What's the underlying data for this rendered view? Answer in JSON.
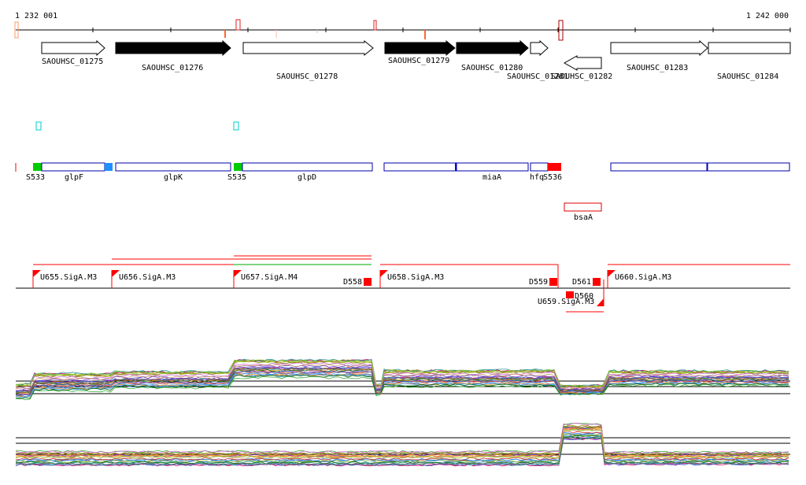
{
  "ruler": {
    "start_label": "1 232 001",
    "end_label": "1 242 000"
  },
  "genes": [
    {
      "id": "SAOUHSC_01275",
      "filled": false
    },
    {
      "id": "SAOUHSC_01276",
      "filled": true
    },
    {
      "id": "SAOUHSC_01278",
      "filled": false
    },
    {
      "id": "SAOUHSC_01279",
      "filled": true
    },
    {
      "id": "SAOUHSC_01280",
      "filled": true
    },
    {
      "id": "SAOUHSC_01281",
      "filled": false
    },
    {
      "id": "SAOUHSC_01282",
      "filled": false
    },
    {
      "id": "SAOUHSC_01283",
      "filled": false
    },
    {
      "id": "SAOUHSC_01284",
      "filled": false
    }
  ],
  "gene_names": [
    "glpF",
    "glpK",
    "glpD",
    "miaA",
    "hfq"
  ],
  "s_features": [
    "S533",
    "S535",
    "S536"
  ],
  "other_feature": "bsaA",
  "promoters": [
    "U655.SigA.M3",
    "U656.SigA.M3",
    "U657.SigA.M4",
    "U658.SigA.M3",
    "U659.SigA.M3",
    "U660.SigA.M3"
  ],
  "terminators": [
    "D558",
    "D559",
    "D560",
    "D561"
  ],
  "colors": {
    "gene_fill": "#000000",
    "gene_outline": "#000000",
    "feature_box": "#0000aa",
    "s_green": "#00cc00",
    "s_red": "#ff0000",
    "s_blue": "#1e90ff",
    "cyan": "#00cccc",
    "promoter_red": "#ff0000",
    "green_line": "#00aa00"
  }
}
